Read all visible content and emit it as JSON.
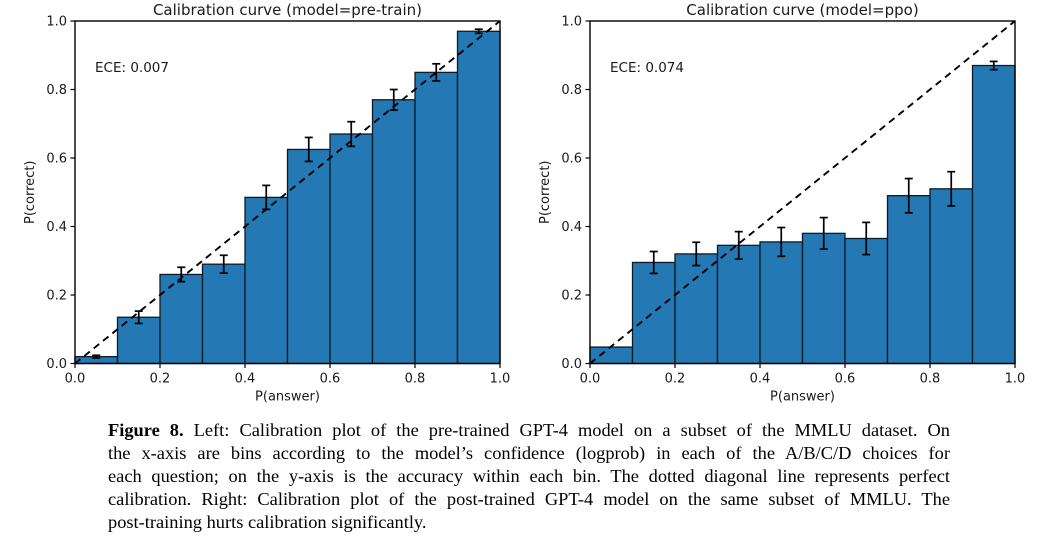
{
  "figure": {
    "caption": {
      "label": "Figure 8.",
      "lines": [
        " Left: Calibration plot of the pre-trained GPT-4 model on a subset of the MMLU dataset. On",
        "the x-axis are bins according to the model’s confidence (logprob) in each of the A/B/C/D choices for",
        "each question; on the y-axis is the accuracy within each bin. The dotted diagonal line represents perfect",
        "calibration. Right: Calibration plot of the post-trained GPT-4 model on the same subset of MMLU. The",
        "post-training hurts calibration significantly."
      ]
    }
  },
  "chart_data": [
    {
      "type": "bar",
      "title": "Calibration curve (model=pre-train)",
      "annotation": "ECE: 0.007",
      "xlabel": "P(answer)",
      "ylabel": "P(correct)",
      "xlim": [
        0,
        1
      ],
      "ylim": [
        0,
        1
      ],
      "x_ticks": [
        0,
        0.2,
        0.4,
        0.6,
        0.8,
        1.0
      ],
      "y_ticks": [
        0,
        0.2,
        0.4,
        0.6,
        0.8,
        1.0
      ],
      "bin_edges": [
        0,
        0.1,
        0.2,
        0.3,
        0.4,
        0.5,
        0.6,
        0.7,
        0.8,
        0.9,
        1.0
      ],
      "values": [
        0.02,
        0.135,
        0.26,
        0.29,
        0.485,
        0.625,
        0.67,
        0.77,
        0.85,
        0.97
      ],
      "errors": [
        0.004,
        0.018,
        0.021,
        0.026,
        0.035,
        0.035,
        0.036,
        0.03,
        0.025,
        0.006
      ],
      "diagonal": {
        "from": [
          0,
          0
        ],
        "to": [
          1,
          1
        ],
        "style": "dashed",
        "meaning": "perfect calibration"
      },
      "grid": false,
      "legend": null,
      "colors": {
        "bar_fill": "#2478b4",
        "bar_edge": "#0d1b26",
        "line": "#000000",
        "text": "#1a1a1a"
      }
    },
    {
      "type": "bar",
      "title": "Calibration curve (model=ppo)",
      "annotation": "ECE: 0.074",
      "xlabel": "P(answer)",
      "ylabel": "P(correct)",
      "xlim": [
        0,
        1
      ],
      "ylim": [
        0,
        1
      ],
      "x_ticks": [
        0,
        0.2,
        0.4,
        0.6,
        0.8,
        1.0
      ],
      "y_ticks": [
        0,
        0.2,
        0.4,
        0.6,
        0.8,
        1.0
      ],
      "bin_edges": [
        0,
        0.1,
        0.2,
        0.3,
        0.4,
        0.5,
        0.6,
        0.7,
        0.8,
        0.9,
        1.0
      ],
      "values": [
        0.048,
        0.295,
        0.32,
        0.345,
        0.355,
        0.38,
        0.365,
        0.49,
        0.51,
        0.87
      ],
      "errors": [
        0,
        0.032,
        0.034,
        0.04,
        0.042,
        0.046,
        0.047,
        0.05,
        0.05,
        0.012
      ],
      "diagonal": {
        "from": [
          0,
          0
        ],
        "to": [
          1,
          1
        ],
        "style": "dashed",
        "meaning": "perfect calibration"
      },
      "grid": false,
      "legend": null,
      "colors": {
        "bar_fill": "#2478b4",
        "bar_edge": "#0d1b26",
        "line": "#000000",
        "text": "#1a1a1a"
      }
    }
  ]
}
